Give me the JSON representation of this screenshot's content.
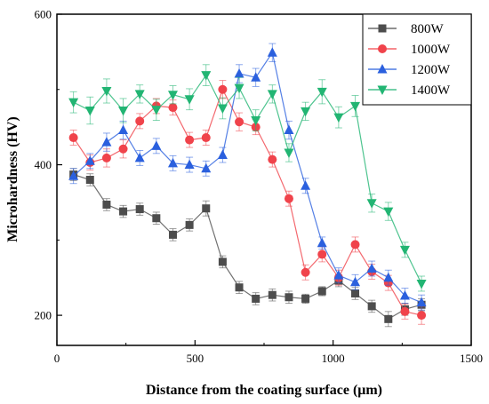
{
  "chart_data": {
    "type": "line",
    "xlabel": "Distance from the coating surface (μm)",
    "ylabel": "Microhardness (HV)",
    "xlim": [
      0,
      1500
    ],
    "ylim": [
      160,
      600
    ],
    "xticks": [
      0,
      500,
      1000,
      1500
    ],
    "yticks": [
      200,
      400,
      600
    ],
    "grid": false,
    "legend_position": "top-right",
    "x": [
      60,
      120,
      180,
      240,
      300,
      360,
      420,
      480,
      540,
      600,
      660,
      720,
      780,
      840,
      900,
      960,
      1020,
      1080,
      1140,
      1200,
      1260,
      1320
    ],
    "series": [
      {
        "name": "800W",
        "color": "#4d4d4d",
        "marker": "square",
        "values": [
          387,
          380,
          347,
          338,
          341,
          329,
          307,
          320,
          342,
          271,
          237,
          222,
          227,
          224,
          222,
          232,
          246,
          229,
          212,
          195,
          208,
          214
        ],
        "errors": [
          8,
          8,
          8,
          8,
          8,
          8,
          8,
          8,
          10,
          8,
          8,
          8,
          8,
          8,
          6,
          6,
          8,
          8,
          8,
          10,
          8,
          8
        ]
      },
      {
        "name": "1000W",
        "color": "#f0434b",
        "marker": "circle",
        "values": [
          436,
          403,
          409,
          421,
          458,
          478,
          476,
          433,
          436,
          500,
          457,
          450,
          407,
          355,
          257,
          281,
          250,
          294,
          258,
          243,
          205,
          200
        ],
        "errors": [
          10,
          10,
          12,
          12,
          10,
          10,
          10,
          10,
          10,
          12,
          12,
          10,
          10,
          10,
          10,
          10,
          10,
          10,
          10,
          10,
          10,
          12
        ]
      },
      {
        "name": "1200W",
        "color": "#2b60de",
        "marker": "triangle-up",
        "values": [
          385,
          405,
          430,
          446,
          409,
          425,
          402,
          400,
          395,
          413,
          521,
          516,
          549,
          446,
          372,
          296,
          253,
          244,
          262,
          250,
          226,
          217
        ],
        "errors": [
          10,
          10,
          12,
          12,
          10,
          10,
          10,
          10,
          10,
          10,
          12,
          12,
          12,
          12,
          10,
          8,
          10,
          10,
          10,
          10,
          10,
          10
        ]
      },
      {
        "name": "1400W",
        "color": "#22b573",
        "marker": "triangle-down",
        "values": [
          483,
          472,
          498,
          472,
          494,
          473,
          493,
          487,
          519,
          475,
          502,
          459,
          494,
          416,
          471,
          497,
          463,
          478,
          349,
          338,
          287,
          242
        ],
        "errors": [
          14,
          18,
          16,
          16,
          12,
          14,
          12,
          14,
          14,
          14,
          14,
          14,
          12,
          12,
          12,
          16,
          14,
          14,
          12,
          12,
          10,
          10
        ]
      }
    ]
  }
}
